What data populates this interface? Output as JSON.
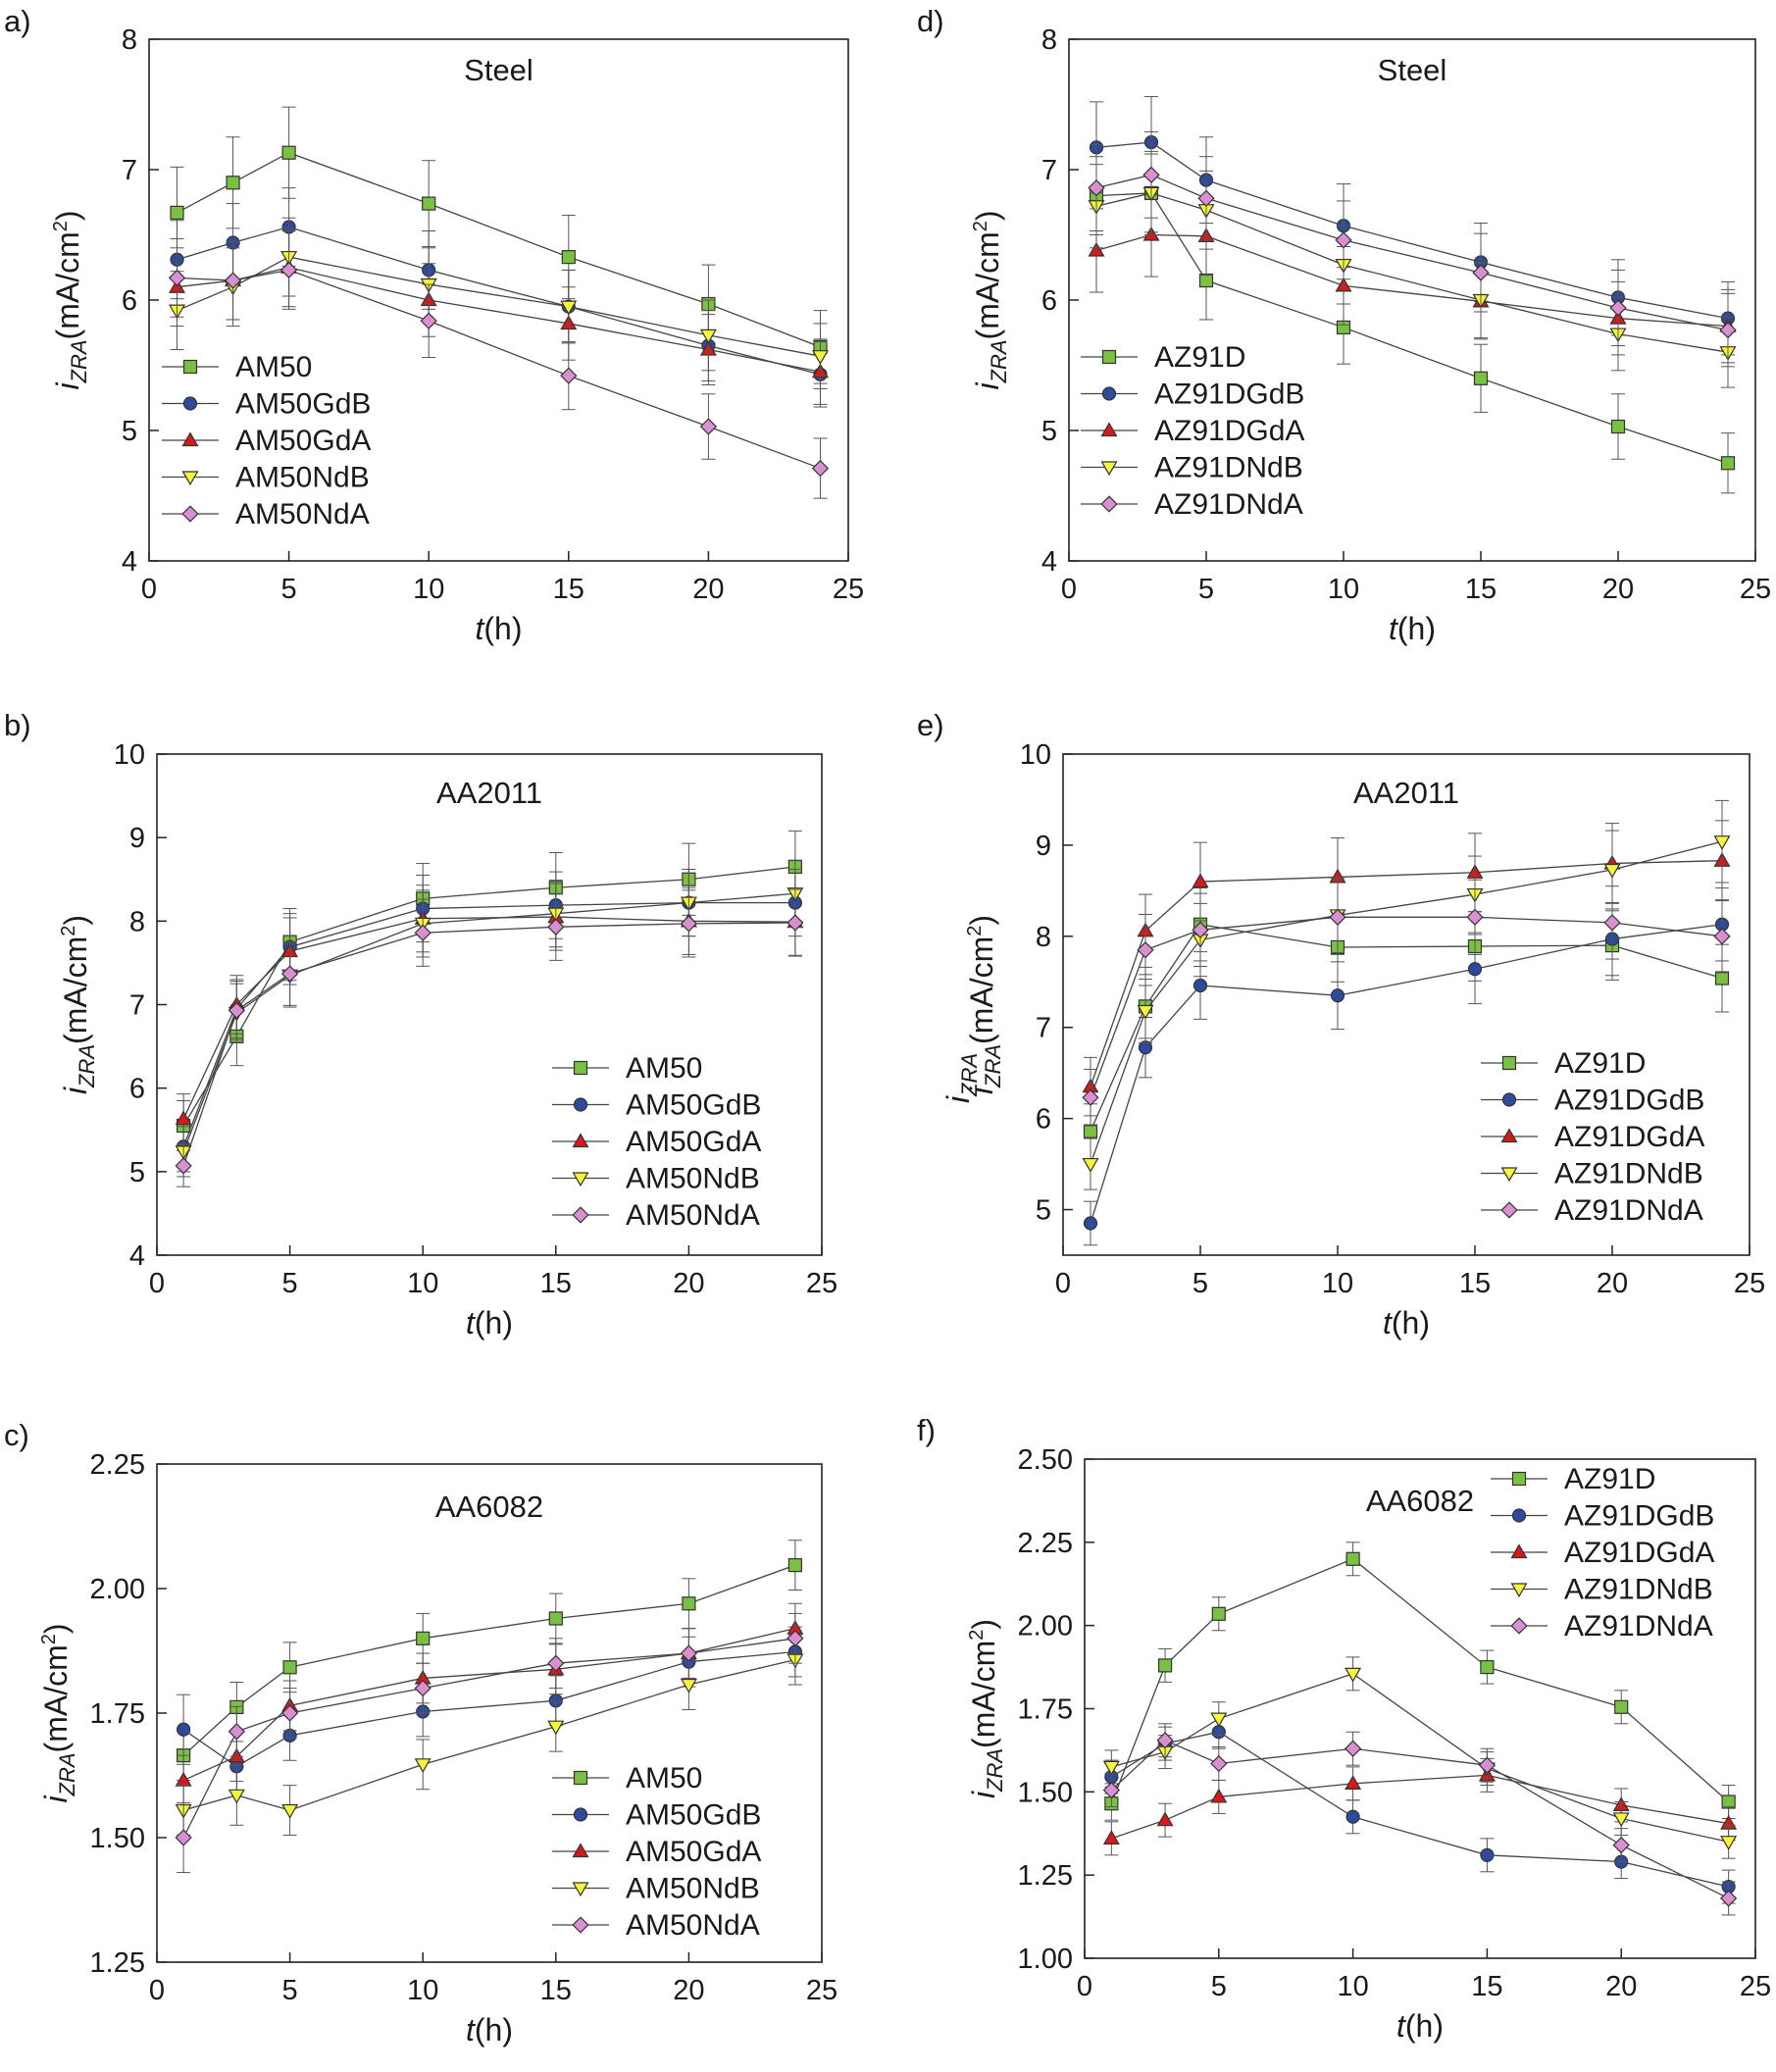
{
  "colors": {
    "square": "#7ac143",
    "circle": "#2e4b9b",
    "triangle": "#d7191c",
    "down-triangle": "#f5f53a",
    "diamond": "#d98fd1"
  },
  "chart_data": [
    {
      "type": "line",
      "panel_label": "a)",
      "title": "Steel",
      "xlabel_italic": "t",
      "xlabel_rest": "(h)",
      "ylabel_i": "i",
      "ylabel_sub": "ZRA",
      "ylabel_unit": "(mA/cm",
      "ylabel_sup": "2",
      "ylabel_close": ")",
      "xlim": [
        0,
        25
      ],
      "ylim": [
        4,
        8
      ],
      "xticks": [
        0,
        5,
        10,
        15,
        20,
        25
      ],
      "yticks": [
        4,
        5,
        6,
        7,
        8
      ],
      "ytick_labels": [
        "4",
        "5",
        "6",
        "7",
        "8"
      ],
      "legend_placement": "bottom-left",
      "x": [
        1,
        3,
        5,
        10,
        15,
        20,
        24
      ],
      "series": [
        {
          "name": "AM50",
          "marker": "square",
          "values": [
            6.67,
            6.9,
            7.13,
            6.74,
            6.33,
            5.97,
            5.64
          ],
          "err": [
            0.35,
            0.35,
            0.35,
            0.33,
            0.32,
            0.3,
            0.28
          ]
        },
        {
          "name": "AM50GdB",
          "marker": "circle",
          "values": [
            6.31,
            6.44,
            6.56,
            6.23,
            5.95,
            5.65,
            5.43
          ],
          "err": [
            0.3,
            0.3,
            0.3,
            0.3,
            0.28,
            0.27,
            0.25
          ]
        },
        {
          "name": "AM50GdA",
          "marker": "triangle",
          "values": [
            6.1,
            6.15,
            6.25,
            6.0,
            5.82,
            5.62,
            5.45
          ],
          "err": [
            0.3,
            0.3,
            0.3,
            0.28,
            0.28,
            0.27,
            0.25
          ]
        },
        {
          "name": "AM50NdB",
          "marker": "down-triangle",
          "values": [
            5.92,
            6.1,
            6.33,
            6.12,
            5.95,
            5.73,
            5.57
          ],
          "err": [
            0.3,
            0.3,
            0.3,
            0.28,
            0.28,
            0.27,
            0.25
          ]
        },
        {
          "name": "AM50NdA",
          "marker": "diamond",
          "values": [
            6.17,
            6.15,
            6.23,
            5.84,
            5.42,
            5.03,
            4.71
          ],
          "err": [
            0.3,
            0.3,
            0.3,
            0.28,
            0.26,
            0.25,
            0.23
          ]
        }
      ]
    },
    {
      "type": "line",
      "panel_label": "d)",
      "title": "Steel",
      "xlabel_italic": "t",
      "xlabel_rest": "(h)",
      "ylabel_i": "i",
      "ylabel_sub": "ZRA",
      "ylabel_unit": "(mA/cm",
      "ylabel_sup": "2",
      "ylabel_close": ")",
      "xlim": [
        0,
        25
      ],
      "ylim": [
        4,
        8
      ],
      "xticks": [
        0,
        5,
        10,
        15,
        20,
        25
      ],
      "yticks": [
        4,
        5,
        6,
        7,
        8
      ],
      "ytick_labels": [
        "4",
        "5",
        "6",
        "7",
        "8"
      ],
      "legend_placement": "bottom-left",
      "x": [
        1,
        3,
        5,
        10,
        15,
        20,
        24
      ],
      "series": [
        {
          "name": "AZ91D",
          "marker": "square",
          "values": [
            6.8,
            6.82,
            6.15,
            5.79,
            5.4,
            5.03,
            4.75
          ],
          "err": [
            0.3,
            0.3,
            0.3,
            0.28,
            0.26,
            0.25,
            0.23
          ]
        },
        {
          "name": "AZ91DGdB",
          "marker": "circle",
          "values": [
            7.17,
            7.21,
            6.92,
            6.57,
            6.29,
            6.02,
            5.86
          ],
          "err": [
            0.35,
            0.35,
            0.33,
            0.32,
            0.3,
            0.29,
            0.28
          ]
        },
        {
          "name": "AZ91DGdA",
          "marker": "triangle",
          "values": [
            6.38,
            6.5,
            6.49,
            6.11,
            5.99,
            5.86,
            5.8
          ],
          "err": [
            0.32,
            0.32,
            0.3,
            0.3,
            0.29,
            0.28,
            0.28
          ]
        },
        {
          "name": "AZ91DNdB",
          "marker": "down-triangle",
          "values": [
            6.72,
            6.82,
            6.69,
            6.27,
            6.0,
            5.74,
            5.6
          ],
          "err": [
            0.32,
            0.32,
            0.3,
            0.3,
            0.29,
            0.28,
            0.27
          ]
        },
        {
          "name": "AZ91DNdA",
          "marker": "diamond",
          "values": [
            6.86,
            6.96,
            6.78,
            6.46,
            6.21,
            5.94,
            5.77
          ],
          "err": [
            0.33,
            0.33,
            0.32,
            0.3,
            0.3,
            0.29,
            0.28
          ]
        }
      ]
    },
    {
      "type": "line",
      "panel_label": "b)",
      "title": "AA2011",
      "xlabel_italic": "t",
      "xlabel_rest": "(h)",
      "ylabel_i": "i",
      "ylabel_sub": "ZRA",
      "ylabel_unit": "(mA/cm",
      "ylabel_sup": "2",
      "ylabel_close": ")",
      "xlim": [
        0,
        25
      ],
      "ylim": [
        4,
        10
      ],
      "xticks": [
        0,
        5,
        10,
        15,
        20,
        25
      ],
      "yticks": [
        4,
        5,
        6,
        7,
        8,
        9,
        10
      ],
      "ytick_labels": [
        "4",
        "5",
        "6",
        "7",
        "8",
        "9",
        "10"
      ],
      "legend_placement": "bottom-right",
      "x": [
        1,
        3,
        5,
        10,
        15,
        20,
        24
      ],
      "series": [
        {
          "name": "AM50",
          "marker": "square",
          "values": [
            5.55,
            6.62,
            7.75,
            8.27,
            8.4,
            8.5,
            8.65
          ],
          "err": [
            0.3,
            0.35,
            0.4,
            0.42,
            0.42,
            0.43,
            0.43
          ]
        },
        {
          "name": "AM50GdB",
          "marker": "circle",
          "values": [
            5.3,
            6.95,
            7.69,
            8.15,
            8.19,
            8.22,
            8.22
          ],
          "err": [
            0.3,
            0.35,
            0.4,
            0.4,
            0.4,
            0.4,
            0.4
          ]
        },
        {
          "name": "AM50GdA",
          "marker": "triangle",
          "values": [
            5.63,
            7.0,
            7.64,
            8.03,
            8.05,
            8.0,
            7.99
          ],
          "err": [
            0.3,
            0.35,
            0.4,
            0.4,
            0.4,
            0.4,
            0.4
          ]
        },
        {
          "name": "AM50NdB",
          "marker": "down-triangle",
          "values": [
            5.24,
            6.9,
            7.35,
            7.97,
            8.09,
            8.22,
            8.33
          ],
          "err": [
            0.3,
            0.35,
            0.38,
            0.4,
            0.4,
            0.4,
            0.4
          ]
        },
        {
          "name": "AM50NdA",
          "marker": "diamond",
          "values": [
            5.07,
            6.93,
            7.37,
            7.86,
            7.93,
            7.97,
            7.98
          ],
          "err": [
            0.25,
            0.35,
            0.38,
            0.4,
            0.4,
            0.4,
            0.4
          ]
        }
      ]
    },
    {
      "type": "line",
      "panel_label": "e)",
      "title": "AA2011",
      "xlabel_italic": "t",
      "xlabel_rest": "(h)",
      "ylabel_i": "i",
      "ylabel_sub": "ZRA",
      "ylabel_unit": "(mA/cm",
      "ylabel_sup": "2",
      "ylabel_close": ")",
      "ylabel_ghost_i": "i",
      "ylabel_ghost_sub": "ZRA",
      "xlim": [
        0,
        25
      ],
      "ylim": [
        4.5,
        10
      ],
      "xticks": [
        0,
        5,
        10,
        15,
        20,
        25
      ],
      "yticks": [
        5,
        6,
        7,
        8,
        9,
        10
      ],
      "ytick_labels": [
        "5",
        "6",
        "7",
        "8",
        "9",
        "10"
      ],
      "legend_placement": "bottom-right",
      "x": [
        1,
        3,
        5,
        10,
        15,
        20,
        24
      ],
      "series": [
        {
          "name": "AZ91D",
          "marker": "square",
          "values": [
            5.86,
            7.23,
            8.13,
            7.88,
            7.89,
            7.9,
            7.54
          ],
          "err": [
            0.3,
            0.35,
            0.4,
            0.38,
            0.38,
            0.38,
            0.37
          ]
        },
        {
          "name": "AZ91DGdB",
          "marker": "circle",
          "values": [
            4.85,
            6.78,
            7.46,
            7.35,
            7.64,
            7.97,
            8.13
          ],
          "err": [
            0.24,
            0.33,
            0.37,
            0.37,
            0.38,
            0.4,
            0.4
          ]
        },
        {
          "name": "AZ91DGdA",
          "marker": "triangle",
          "values": [
            6.35,
            8.06,
            8.6,
            8.65,
            8.7,
            8.8,
            8.83
          ],
          "err": [
            0.32,
            0.4,
            0.43,
            0.43,
            0.43,
            0.44,
            0.44
          ]
        },
        {
          "name": "AZ91DNdB",
          "marker": "down-triangle",
          "values": [
            5.5,
            7.18,
            7.96,
            8.23,
            8.46,
            8.73,
            9.04
          ],
          "err": [
            0.28,
            0.35,
            0.4,
            0.41,
            0.42,
            0.43,
            0.45
          ]
        },
        {
          "name": "AZ91DNdA",
          "marker": "diamond",
          "values": [
            6.23,
            7.85,
            8.07,
            8.21,
            8.21,
            8.15,
            8.0
          ],
          "err": [
            0.31,
            0.39,
            0.4,
            0.41,
            0.41,
            0.4,
            0.4
          ]
        }
      ]
    },
    {
      "type": "line",
      "panel_label": "c)",
      "title": "AA6082",
      "xlabel_italic": "t",
      "xlabel_rest": "(h)",
      "ylabel_i": "i",
      "ylabel_sub": "ZRA",
      "ylabel_unit": "(mA/cm",
      "ylabel_sup": "2",
      "ylabel_close": ")",
      "xlim": [
        0,
        25
      ],
      "ylim": [
        1.25,
        2.25
      ],
      "xticks": [
        0,
        5,
        10,
        15,
        20,
        25
      ],
      "yticks": [
        1.25,
        1.5,
        1.75,
        2.0,
        2.25
      ],
      "ytick_labels": [
        "1.25",
        "1.50",
        "1.75",
        "2.00",
        "2.25"
      ],
      "legend_placement": "bottom-right",
      "x": [
        1,
        3,
        5,
        10,
        15,
        20,
        24
      ],
      "series": [
        {
          "name": "AM50",
          "marker": "square",
          "values": [
            1.665,
            1.762,
            1.842,
            1.9,
            1.94,
            1.97,
            2.047
          ],
          "err": [
            0.05,
            0.05,
            0.05,
            0.05,
            0.05,
            0.05,
            0.05
          ]
        },
        {
          "name": "AM50GdB",
          "marker": "circle",
          "values": [
            1.717,
            1.643,
            1.705,
            1.753,
            1.775,
            1.853,
            1.873
          ],
          "err": [
            0.07,
            0.05,
            0.05,
            0.05,
            0.05,
            0.05,
            0.05
          ]
        },
        {
          "name": "AM50GdA",
          "marker": "triangle",
          "values": [
            1.615,
            1.663,
            1.765,
            1.82,
            1.838,
            1.87,
            1.92
          ],
          "err": [
            0.05,
            0.05,
            0.05,
            0.05,
            0.05,
            0.05,
            0.05
          ]
        },
        {
          "name": "AM50NdB",
          "marker": "down-triangle",
          "values": [
            1.555,
            1.585,
            1.555,
            1.647,
            1.723,
            1.807,
            1.857
          ],
          "err": [
            0.05,
            0.06,
            0.05,
            0.05,
            0.05,
            0.05,
            0.05
          ]
        },
        {
          "name": "AM50NdA",
          "marker": "diamond",
          "values": [
            1.5,
            1.713,
            1.75,
            1.8,
            1.85,
            1.87,
            1.9
          ],
          "err": [
            0.07,
            0.05,
            0.05,
            0.05,
            0.05,
            0.05,
            0.05
          ]
        }
      ]
    },
    {
      "type": "line",
      "panel_label": "f)",
      "title": "AA6082",
      "xlabel_italic": "t",
      "xlabel_rest": "(h)",
      "ylabel_i": "i",
      "ylabel_sub": "ZRA",
      "ylabel_unit": "(mA/cm",
      "ylabel_sup": "2",
      "ylabel_close": ")",
      "xlim": [
        0,
        25
      ],
      "ylim": [
        1.0,
        2.5
      ],
      "xticks": [
        0,
        5,
        10,
        15,
        20,
        25
      ],
      "yticks": [
        1.0,
        1.25,
        1.5,
        1.75,
        2.0,
        2.25,
        2.5
      ],
      "ytick_labels": [
        "1.00",
        "1.25",
        "1.50",
        "1.75",
        "2.00",
        "2.25",
        "2.50"
      ],
      "legend_placement": "top-right",
      "x": [
        1,
        3,
        5,
        10,
        15,
        20,
        24
      ],
      "series": [
        {
          "name": "AZ91D",
          "marker": "square",
          "values": [
            1.465,
            1.88,
            2.035,
            2.2,
            1.875,
            1.755,
            1.47
          ],
          "err": [
            0.05,
            0.05,
            0.05,
            0.05,
            0.05,
            0.05,
            0.05
          ]
        },
        {
          "name": "AZ91DGdB",
          "marker": "circle",
          "values": [
            1.545,
            1.645,
            1.68,
            1.425,
            1.31,
            1.29,
            1.215
          ],
          "err": [
            0.05,
            0.05,
            0.05,
            0.05,
            0.05,
            0.05,
            0.05
          ]
        },
        {
          "name": "AZ91DGdA",
          "marker": "triangle",
          "values": [
            1.36,
            1.415,
            1.485,
            1.525,
            1.55,
            1.46,
            1.405
          ],
          "err": [
            0.05,
            0.05,
            0.05,
            0.05,
            0.05,
            0.05,
            0.05
          ]
        },
        {
          "name": "AZ91DNdB",
          "marker": "down-triangle",
          "values": [
            1.575,
            1.62,
            1.72,
            1.855,
            1.57,
            1.42,
            1.35
          ],
          "err": [
            0.05,
            0.05,
            0.05,
            0.05,
            0.05,
            0.05,
            0.05
          ]
        },
        {
          "name": "AZ91DNdA",
          "marker": "diamond",
          "values": [
            1.505,
            1.655,
            1.585,
            1.63,
            1.58,
            1.34,
            1.18
          ],
          "err": [
            0.05,
            0.05,
            0.05,
            0.05,
            0.05,
            0.05,
            0.05
          ]
        }
      ]
    }
  ]
}
